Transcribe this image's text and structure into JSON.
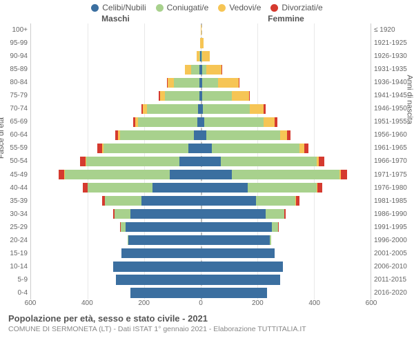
{
  "chart": {
    "type": "population-pyramid",
    "legend": [
      {
        "label": "Celibi/Nubili",
        "color": "#3b6fa0"
      },
      {
        "label": "Coniugati/e",
        "color": "#a8d18d"
      },
      {
        "label": "Vedovi/e",
        "color": "#f6c555"
      },
      {
        "label": "Divorziati/e",
        "color": "#d53a2f"
      }
    ],
    "headers": {
      "left": "Maschi",
      "right": "Femmine"
    },
    "y_left_title": "Fasce di età",
    "y_right_title": "Anni di nascita",
    "age_labels": [
      "100+",
      "95-99",
      "90-94",
      "85-89",
      "80-84",
      "75-79",
      "70-74",
      "65-69",
      "60-64",
      "55-59",
      "50-54",
      "45-49",
      "40-44",
      "35-39",
      "30-34",
      "25-29",
      "20-24",
      "15-19",
      "10-14",
      "5-9",
      "0-4"
    ],
    "birth_labels": [
      "≤ 1920",
      "1921-1925",
      "1926-1930",
      "1931-1935",
      "1936-1940",
      "1941-1945",
      "1946-1950",
      "1951-1955",
      "1956-1960",
      "1961-1965",
      "1966-1970",
      "1971-1975",
      "1976-1980",
      "1981-1985",
      "1986-1990",
      "1991-1995",
      "1996-2000",
      "2001-2005",
      "2006-2010",
      "2011-2015",
      "2016-2020"
    ],
    "xmax": 600,
    "xticks_left": [
      600,
      400,
      200,
      0
    ],
    "xticks_right": [
      0,
      200,
      400,
      600
    ],
    "males": [
      {
        "single": 0,
        "married": 0,
        "widowed": 0,
        "divorced": 0
      },
      {
        "single": 0,
        "married": 0,
        "widowed": 3,
        "divorced": 0
      },
      {
        "single": 2,
        "married": 3,
        "widowed": 10,
        "divorced": 0
      },
      {
        "single": 5,
        "married": 30,
        "widowed": 20,
        "divorced": 1
      },
      {
        "single": 6,
        "married": 90,
        "widowed": 22,
        "divorced": 2
      },
      {
        "single": 6,
        "married": 120,
        "widowed": 18,
        "divorced": 4
      },
      {
        "single": 10,
        "married": 180,
        "widowed": 15,
        "divorced": 6
      },
      {
        "single": 12,
        "married": 210,
        "widowed": 10,
        "divorced": 8
      },
      {
        "single": 25,
        "married": 260,
        "widowed": 8,
        "divorced": 10
      },
      {
        "single": 45,
        "married": 300,
        "widowed": 5,
        "divorced": 15
      },
      {
        "single": 75,
        "married": 330,
        "widowed": 3,
        "divorced": 18
      },
      {
        "single": 110,
        "married": 370,
        "widowed": 2,
        "divorced": 20
      },
      {
        "single": 170,
        "married": 230,
        "widowed": 1,
        "divorced": 15
      },
      {
        "single": 210,
        "married": 130,
        "widowed": 0,
        "divorced": 10
      },
      {
        "single": 250,
        "married": 55,
        "widowed": 0,
        "divorced": 5
      },
      {
        "single": 265,
        "married": 18,
        "widowed": 0,
        "divorced": 2
      },
      {
        "single": 255,
        "married": 3,
        "widowed": 0,
        "divorced": 0
      },
      {
        "single": 280,
        "married": 0,
        "widowed": 0,
        "divorced": 0
      },
      {
        "single": 310,
        "married": 0,
        "widowed": 0,
        "divorced": 0
      },
      {
        "single": 300,
        "married": 0,
        "widowed": 0,
        "divorced": 0
      },
      {
        "single": 250,
        "married": 0,
        "widowed": 0,
        "divorced": 0
      }
    ],
    "females": [
      {
        "single": 0,
        "married": 0,
        "widowed": 1,
        "divorced": 0
      },
      {
        "single": 1,
        "married": 0,
        "widowed": 8,
        "divorced": 0
      },
      {
        "single": 2,
        "married": 2,
        "widowed": 28,
        "divorced": 0
      },
      {
        "single": 4,
        "married": 15,
        "widowed": 55,
        "divorced": 1
      },
      {
        "single": 5,
        "married": 55,
        "widowed": 75,
        "divorced": 2
      },
      {
        "single": 5,
        "married": 105,
        "widowed": 60,
        "divorced": 4
      },
      {
        "single": 8,
        "married": 165,
        "widowed": 50,
        "divorced": 6
      },
      {
        "single": 12,
        "married": 210,
        "widowed": 40,
        "divorced": 8
      },
      {
        "single": 20,
        "married": 260,
        "widowed": 25,
        "divorced": 12
      },
      {
        "single": 40,
        "married": 310,
        "widowed": 15,
        "divorced": 15
      },
      {
        "single": 70,
        "married": 340,
        "widowed": 8,
        "divorced": 18
      },
      {
        "single": 110,
        "married": 380,
        "widowed": 4,
        "divorced": 22
      },
      {
        "single": 165,
        "married": 245,
        "widowed": 2,
        "divorced": 18
      },
      {
        "single": 195,
        "married": 140,
        "widowed": 1,
        "divorced": 12
      },
      {
        "single": 230,
        "married": 65,
        "widowed": 0,
        "divorced": 6
      },
      {
        "single": 250,
        "married": 22,
        "widowed": 0,
        "divorced": 2
      },
      {
        "single": 245,
        "married": 4,
        "widowed": 0,
        "divorced": 0
      },
      {
        "single": 260,
        "married": 0,
        "widowed": 0,
        "divorced": 0
      },
      {
        "single": 290,
        "married": 0,
        "widowed": 0,
        "divorced": 0
      },
      {
        "single": 280,
        "married": 0,
        "widowed": 0,
        "divorced": 0
      },
      {
        "single": 235,
        "married": 0,
        "widowed": 0,
        "divorced": 0
      }
    ],
    "stack_order_left": [
      "single",
      "married",
      "widowed",
      "divorced"
    ],
    "stack_order_right": [
      "single",
      "married",
      "widowed",
      "divorced"
    ],
    "colors": {
      "single": "#3b6fa0",
      "married": "#a8d18d",
      "widowed": "#f6c555",
      "divorced": "#d53a2f"
    },
    "background_color": "#ffffff",
    "grid_color": "#e8e8e8",
    "center_line_color": "#bbbbbb"
  },
  "footer": {
    "title": "Popolazione per età, sesso e stato civile - 2021",
    "subtitle": "COMUNE DI SERMONETA (LT) - Dati ISTAT 1° gennaio 2021 - Elaborazione TUTTITALIA.IT"
  }
}
